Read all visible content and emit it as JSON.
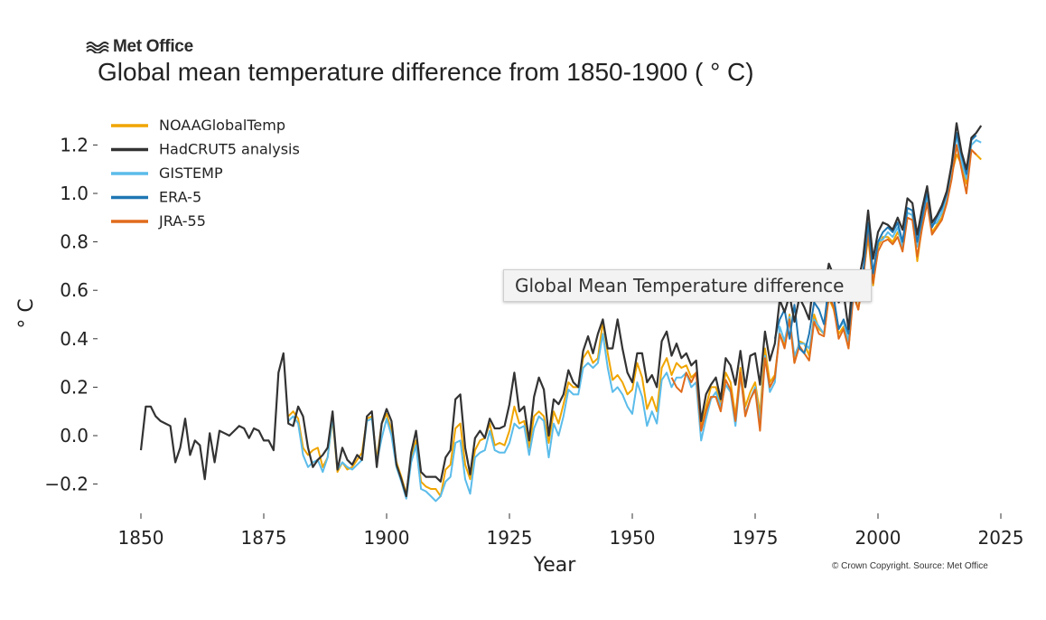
{
  "logo_text": "Met Office",
  "title": "Global mean temperature difference from 1850-1900 ( ° C)",
  "copyright": "© Crown Copyright. Source: Met Office",
  "tooltip": "Global Mean Temperature difference",
  "chart_data": {
    "type": "line",
    "xlabel": "Year",
    "ylabel": "° C",
    "xlim": [
      1845,
      2030
    ],
    "ylim": [
      -0.3,
      1.3
    ],
    "xticks": [
      1850,
      1875,
      1900,
      1925,
      1950,
      1975,
      2000,
      2025
    ],
    "yticks": [
      -0.2,
      0.0,
      0.2,
      0.4,
      0.6,
      0.8,
      1.0,
      1.2
    ],
    "ytick_labels": [
      "−0.2",
      "0.0",
      "0.2",
      "0.4",
      "0.6",
      "0.8",
      "1.0",
      "1.2"
    ],
    "grid": false,
    "legend_position": "top-left",
    "series": [
      {
        "name": "NOAAGlobalTemp",
        "color": "#f0a500",
        "start": 1880,
        "values": [
          0.08,
          0.1,
          0.07,
          -0.05,
          -0.08,
          -0.06,
          -0.05,
          -0.13,
          -0.09,
          0.07,
          -0.15,
          -0.11,
          -0.14,
          -0.13,
          -0.1,
          -0.07,
          0.07,
          0.08,
          -0.1,
          0.05,
          0.09,
          0.02,
          -0.11,
          -0.17,
          -0.24,
          -0.09,
          -0.02,
          -0.19,
          -0.21,
          -0.22,
          -0.22,
          -0.25,
          -0.14,
          -0.12,
          0.03,
          0.05,
          -0.12,
          -0.18,
          -0.06,
          -0.02,
          -0.01,
          0.05,
          -0.04,
          -0.03,
          -0.04,
          0.02,
          0.12,
          0.05,
          0.06,
          -0.05,
          0.08,
          0.1,
          0.08,
          -0.03,
          0.1,
          0.05,
          0.13,
          0.22,
          0.2,
          0.2,
          0.32,
          0.35,
          0.3,
          0.32,
          0.47,
          0.34,
          0.23,
          0.25,
          0.22,
          0.17,
          0.19,
          0.3,
          0.24,
          0.11,
          0.16,
          0.1,
          0.28,
          0.32,
          0.25,
          0.3,
          0.28,
          0.29,
          0.24,
          0.26,
          0.03,
          0.12,
          0.2,
          0.2,
          0.14,
          0.26,
          0.22,
          0.08,
          0.28,
          0.12,
          0.18,
          0.22,
          0.09,
          0.36,
          0.22,
          0.25,
          0.42,
          0.37,
          0.5,
          0.3,
          0.39,
          0.38,
          0.33,
          0.5,
          0.44,
          0.42,
          0.57,
          0.52,
          0.42,
          0.45,
          0.36,
          0.6,
          0.52,
          0.66,
          0.82,
          0.62,
          0.78,
          0.82,
          0.82,
          0.8,
          0.84,
          0.8,
          0.92,
          0.91,
          0.72,
          0.87,
          0.97,
          0.84,
          0.87,
          0.9,
          0.98,
          1.08,
          1.16,
          1.12,
          1.04,
          1.18,
          1.16,
          1.14
        ]
      },
      {
        "name": "HadCRUT5 analysis",
        "color": "#333333",
        "start": 1850,
        "values": [
          -0.06,
          0.12,
          0.12,
          0.08,
          0.06,
          0.05,
          0.04,
          -0.11,
          -0.05,
          0.07,
          -0.08,
          -0.02,
          -0.04,
          -0.18,
          0.01,
          -0.11,
          0.02,
          0.01,
          0.0,
          0.02,
          0.04,
          0.03,
          -0.01,
          0.03,
          0.02,
          -0.02,
          -0.02,
          -0.06,
          0.26,
          0.34,
          0.05,
          0.04,
          0.12,
          0.08,
          -0.05,
          -0.13,
          -0.1,
          -0.08,
          -0.05,
          0.1,
          -0.14,
          -0.05,
          -0.1,
          -0.12,
          -0.08,
          -0.1,
          0.08,
          0.1,
          -0.13,
          0.05,
          0.11,
          0.06,
          -0.12,
          -0.18,
          -0.25,
          -0.07,
          0.02,
          -0.15,
          -0.17,
          -0.17,
          -0.17,
          -0.19,
          -0.09,
          -0.06,
          0.15,
          0.17,
          -0.05,
          -0.16,
          -0.01,
          0.02,
          -0.01,
          0.07,
          0.03,
          0.03,
          0.04,
          0.13,
          0.26,
          0.1,
          0.12,
          -0.02,
          0.16,
          0.24,
          0.19,
          0.0,
          0.15,
          0.13,
          0.17,
          0.27,
          0.22,
          0.2,
          0.35,
          0.41,
          0.34,
          0.42,
          0.48,
          0.36,
          0.36,
          0.48,
          0.36,
          0.26,
          0.22,
          0.34,
          0.34,
          0.22,
          0.25,
          0.2,
          0.39,
          0.43,
          0.33,
          0.38,
          0.32,
          0.34,
          0.29,
          0.31,
          0.06,
          0.17,
          0.21,
          0.24,
          0.15,
          0.32,
          0.29,
          0.21,
          0.35,
          0.2,
          0.33,
          0.34,
          0.21,
          0.43,
          0.31,
          0.38,
          0.56,
          0.51,
          0.58,
          0.47,
          0.57,
          0.53,
          0.48,
          0.66,
          0.6,
          0.59,
          0.71,
          0.66,
          0.55,
          0.59,
          0.44,
          0.68,
          0.63,
          0.74,
          0.93,
          0.73,
          0.84,
          0.88,
          0.87,
          0.85,
          0.9,
          0.85,
          0.98,
          0.96,
          0.83,
          0.94,
          1.03,
          0.88,
          0.91,
          0.95,
          1.01,
          1.12,
          1.29,
          1.17,
          1.1,
          1.23,
          1.25,
          1.28
        ]
      },
      {
        "name": "GISTEMP",
        "color": "#5bbcea",
        "start": 1880,
        "values": [
          0.06,
          0.08,
          0.05,
          -0.08,
          -0.13,
          -0.11,
          -0.1,
          -0.15,
          -0.09,
          0.08,
          -0.14,
          -0.11,
          -0.13,
          -0.14,
          -0.12,
          -0.1,
          0.06,
          0.07,
          -0.11,
          -0.01,
          0.07,
          0.0,
          -0.13,
          -0.19,
          -0.26,
          -0.11,
          -0.04,
          -0.22,
          -0.23,
          -0.25,
          -0.27,
          -0.25,
          -0.19,
          -0.17,
          -0.03,
          -0.02,
          -0.18,
          -0.24,
          -0.09,
          -0.07,
          -0.06,
          0.02,
          -0.06,
          -0.07,
          -0.07,
          -0.03,
          0.05,
          0.03,
          0.04,
          -0.08,
          0.03,
          0.08,
          0.06,
          -0.09,
          0.05,
          0.0,
          0.08,
          0.19,
          0.17,
          0.17,
          0.28,
          0.3,
          0.28,
          0.3,
          0.42,
          0.28,
          0.18,
          0.2,
          0.17,
          0.12,
          0.09,
          0.22,
          0.16,
          0.04,
          0.1,
          0.05,
          0.23,
          0.26,
          0.2,
          0.24,
          0.24,
          0.26,
          0.2,
          0.22,
          -0.02,
          0.07,
          0.15,
          0.18,
          0.12,
          0.21,
          0.18,
          0.04,
          0.25,
          0.09,
          0.15,
          0.2,
          0.05,
          0.33,
          0.18,
          0.22,
          0.45,
          0.39,
          0.49,
          0.33,
          0.38,
          0.38,
          0.36,
          0.48,
          0.45,
          0.42,
          0.6,
          0.56,
          0.44,
          0.47,
          0.39,
          0.6,
          0.56,
          0.67,
          0.85,
          0.66,
          0.8,
          0.81,
          0.84,
          0.82,
          0.86,
          0.78,
          0.92,
          0.91,
          0.78,
          0.88,
          0.99,
          0.87,
          0.88,
          0.92,
          0.99,
          1.1,
          1.24,
          1.13,
          1.06,
          1.2,
          1.22,
          1.21
        ]
      },
      {
        "name": "ERA-5",
        "color": "#1f77b4",
        "start": 1979,
        "values": [
          0.4,
          0.48,
          0.52,
          0.4,
          0.54,
          0.36,
          0.34,
          0.42,
          0.55,
          0.52,
          0.46,
          0.62,
          0.57,
          0.44,
          0.48,
          0.42,
          0.62,
          0.56,
          0.68,
          0.88,
          0.67,
          0.8,
          0.84,
          0.86,
          0.84,
          0.88,
          0.8,
          0.94,
          0.93,
          0.8,
          0.9,
          1.01,
          0.86,
          0.9,
          0.94,
          1.0,
          1.12,
          1.25,
          1.16,
          1.08,
          1.22,
          1.24
        ]
      },
      {
        "name": "JRA-55",
        "color": "#e06b1b",
        "start": 1958,
        "values": [
          0.24,
          0.2,
          0.18,
          0.26,
          0.22,
          0.26,
          0.02,
          0.1,
          0.16,
          0.16,
          0.1,
          0.23,
          0.19,
          0.06,
          0.26,
          0.08,
          0.15,
          0.19,
          0.02,
          0.32,
          0.2,
          0.24,
          0.42,
          0.36,
          0.48,
          0.3,
          0.37,
          0.34,
          0.31,
          0.47,
          0.42,
          0.41,
          0.58,
          0.53,
          0.4,
          0.44,
          0.36,
          0.58,
          0.52,
          0.65,
          0.84,
          0.63,
          0.76,
          0.8,
          0.81,
          0.79,
          0.82,
          0.76,
          0.9,
          0.89,
          0.74,
          0.86,
          0.96,
          0.83,
          0.86,
          0.89,
          0.96,
          1.06,
          1.2,
          1.1,
          1.0,
          1.18,
          1.16
        ]
      }
    ]
  }
}
